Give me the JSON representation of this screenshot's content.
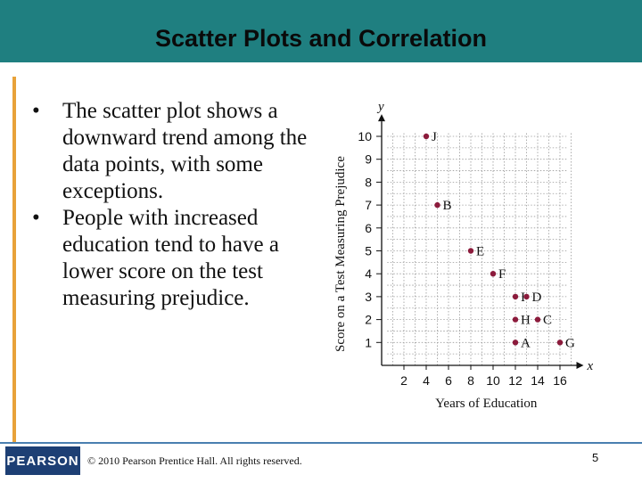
{
  "slide": {
    "title": "Scatter Plots and Correlation",
    "bullets": [
      "The scatter plot shows a downward trend among the data points, with some exceptions.",
      "People with increased education tend to have a lower score on the test measuring prejudice."
    ],
    "logo_text": "PEARSON",
    "copyright": "© 2010 Pearson Prentice Hall. All rights reserved.",
    "page_number": "5"
  },
  "colors": {
    "title_bar": "#1f7f80",
    "accent_bar": "#e8a23a",
    "point": "#8c1b3c",
    "logo_bg": "#1d3f74"
  },
  "chart_data": {
    "type": "scatter",
    "title": "",
    "xlabel": "Years of Education",
    "ylabel": "Score on a Test Measuring Prejudice",
    "x_var": "x",
    "y_var": "y",
    "xlim": [
      0,
      17
    ],
    "ylim": [
      0,
      10.5
    ],
    "xticks": [
      2,
      4,
      6,
      8,
      10,
      12,
      14,
      16
    ],
    "yticks": [
      1,
      2,
      3,
      4,
      5,
      6,
      7,
      8,
      9,
      10
    ],
    "grid": true,
    "points": [
      {
        "label": "J",
        "x": 4,
        "y": 10
      },
      {
        "label": "B",
        "x": 5,
        "y": 7
      },
      {
        "label": "E",
        "x": 8,
        "y": 5
      },
      {
        "label": "F",
        "x": 10,
        "y": 4
      },
      {
        "label": "I",
        "x": 12,
        "y": 3
      },
      {
        "label": "D",
        "x": 13,
        "y": 3
      },
      {
        "label": "H",
        "x": 12,
        "y": 2
      },
      {
        "label": "C",
        "x": 14,
        "y": 2
      },
      {
        "label": "A",
        "x": 12,
        "y": 1
      },
      {
        "label": "G",
        "x": 16,
        "y": 1
      }
    ]
  }
}
